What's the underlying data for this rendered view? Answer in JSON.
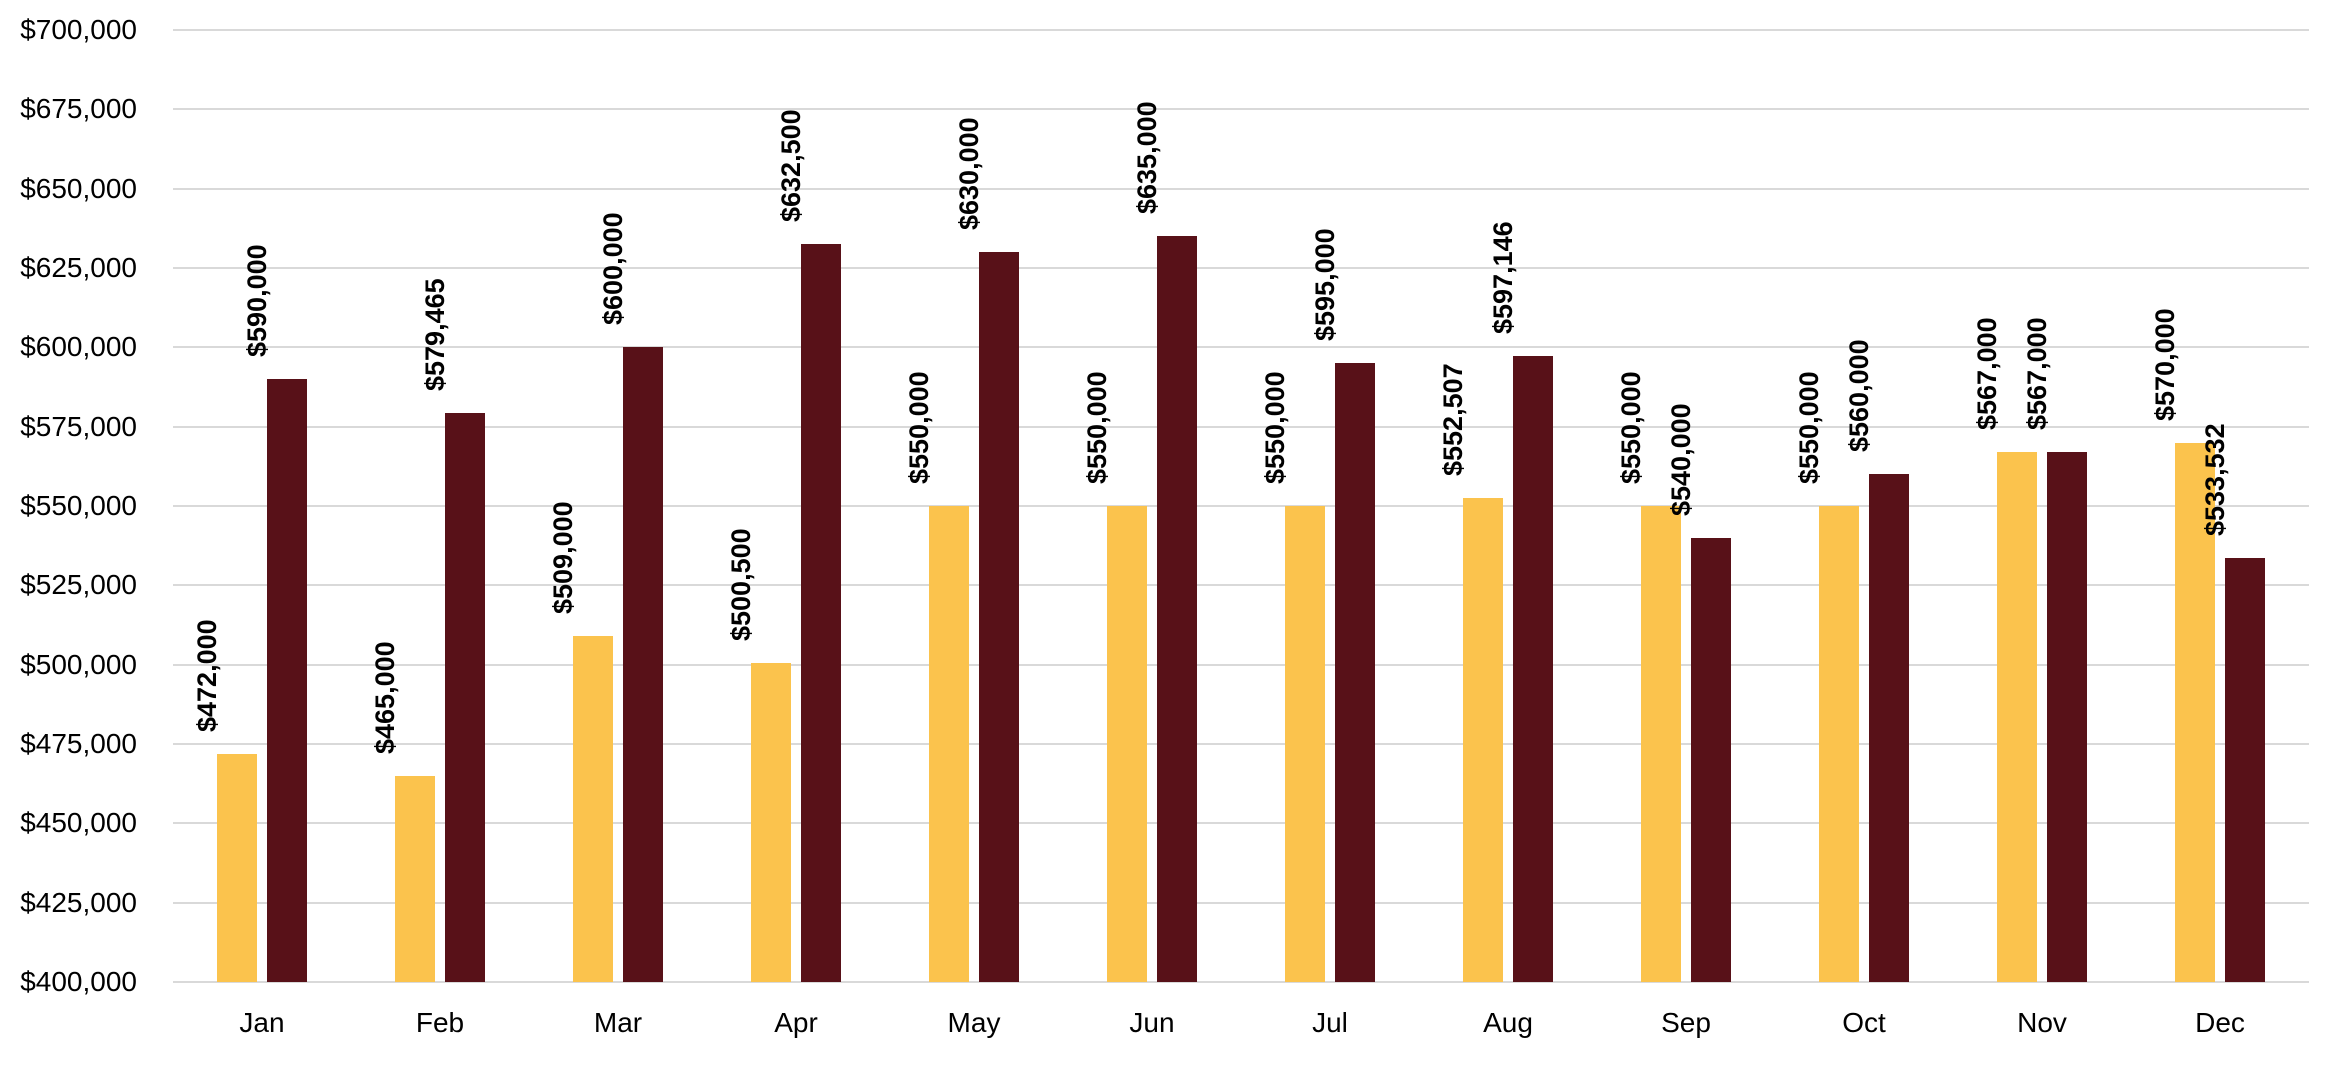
{
  "chart_data": {
    "type": "bar",
    "title": "",
    "categories": [
      "Jan",
      "Feb",
      "Mar",
      "Apr",
      "May",
      "Jun",
      "Jul",
      "Aug",
      "Sep",
      "Oct",
      "Nov",
      "Dec"
    ],
    "series": [
      {
        "name": "gold-series",
        "color": "#FBC34D",
        "values": [
          472000,
          465000,
          509000,
          500500,
          550000,
          550000,
          550000,
          552507,
          550000,
          550000,
          567000,
          570000
        ],
        "labels": [
          "$472,000",
          "$465,000",
          "$509,000",
          "$500,500",
          "$550,000",
          "$550,000",
          "$550,000",
          "$552,507",
          "$550,000",
          "$550,000",
          "$567,000",
          "$570,000"
        ]
      },
      {
        "name": "maroon-series",
        "color": "#581118",
        "values": [
          590000,
          579465,
          600000,
          632500,
          630000,
          635000,
          595000,
          597146,
          540000,
          560000,
          567000,
          533532
        ],
        "labels": [
          "$590,000",
          "$579,465",
          "$600,000",
          "$632,500",
          "$630,000",
          "$635,000",
          "$595,000",
          "$597,146",
          "$540,000",
          "$560,000",
          "$567,000",
          "$533,532"
        ]
      }
    ],
    "xlabel": "",
    "ylabel": "",
    "ylim": [
      400000,
      700000
    ],
    "ytick_step": 25000,
    "ytick_labels": [
      "$400,000",
      "$425,000",
      "$450,000",
      "$475,000",
      "$500,000",
      "$525,000",
      "$550,000",
      "$575,000",
      "$600,000",
      "$625,000",
      "$650,000",
      "$675,000",
      "$700,000"
    ],
    "grid": true,
    "gridline_color": "#D9D9D9",
    "legend_position": "none",
    "data_label_rotation": -90,
    "background_color": "#FFFFFF",
    "text_color": "#000000"
  }
}
